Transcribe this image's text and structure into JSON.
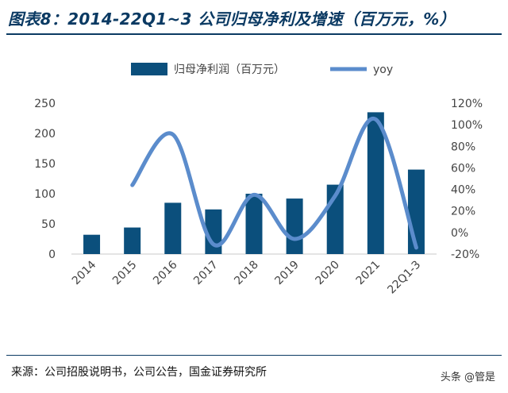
{
  "title": "图表8：2014-22Q1~3 公司归母净利及增速（百万元，%）",
  "source": "来源：公司招股说明书，公司公告，国金证券研究所",
  "watermark": "头条 @管是",
  "colors": {
    "bar": "#0b4f7c",
    "line": "#5b8ccc",
    "title": "#0b3a63",
    "axis": "#c8c8c8"
  },
  "chart_data": {
    "type": "bar",
    "categories": [
      "2014",
      "2015",
      "2016",
      "2017",
      "2018",
      "2019",
      "2020",
      "2021",
      "22Q1-3"
    ],
    "series": [
      {
        "name": "归母净利润（百万元）",
        "type": "bar",
        "axis": "left",
        "values": [
          32,
          44,
          85,
          74,
          100,
          92,
          115,
          235,
          140
        ]
      },
      {
        "name": "yoy",
        "type": "line",
        "axis": "right",
        "values": [
          null,
          0.44,
          0.91,
          -0.11,
          0.35,
          -0.06,
          0.34,
          1.05,
          -0.14
        ]
      }
    ],
    "y_left": {
      "min": 0,
      "max": 250,
      "step": 50,
      "ticks": [
        "0",
        "50",
        "100",
        "150",
        "200",
        "250"
      ]
    },
    "y_right": {
      "min": -0.2,
      "max": 1.2,
      "step": 0.2,
      "ticks": [
        "-20%",
        "0%",
        "20%",
        "40%",
        "60%",
        "80%",
        "100%",
        "120%"
      ]
    },
    "legend": "top-center",
    "grid": false
  }
}
